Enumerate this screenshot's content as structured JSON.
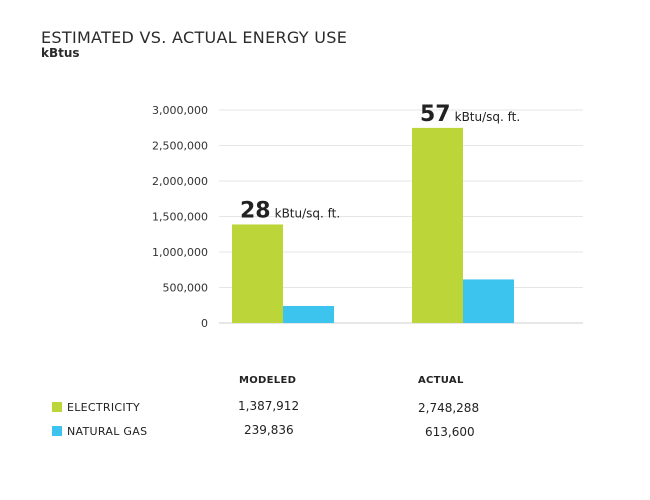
{
  "header": {
    "title": "ESTIMATED VS. ACTUAL ENERGY USE",
    "subtitle": "kBtus"
  },
  "chart_data": {
    "type": "bar",
    "categories": [
      "MODELED",
      "ACTUAL"
    ],
    "series": [
      {
        "name": "ELECTRICITY",
        "color": "#bcd63a",
        "values": [
          1387912,
          2748288
        ],
        "display": [
          "1,387,912",
          "2,748,288"
        ]
      },
      {
        "name": "NATURAL GAS",
        "color": "#3cc4ee",
        "values": [
          239836,
          613600
        ],
        "display": [
          "239,836",
          "613,600"
        ]
      }
    ],
    "ylim": [
      0,
      3000000
    ],
    "yticks": [
      0,
      500000,
      1000000,
      1500000,
      2000000,
      2500000,
      3000000
    ],
    "ytick_labels": [
      "0",
      "500,000",
      "1,000,000",
      "1,500,000",
      "2,000,000",
      "2,500,000",
      "3,000,000"
    ],
    "grid": true,
    "annotations": [
      {
        "value": "28",
        "unit": "kBtu/sq. ft."
      },
      {
        "value": "57",
        "unit": "kBtu/sq. ft."
      }
    ]
  }
}
